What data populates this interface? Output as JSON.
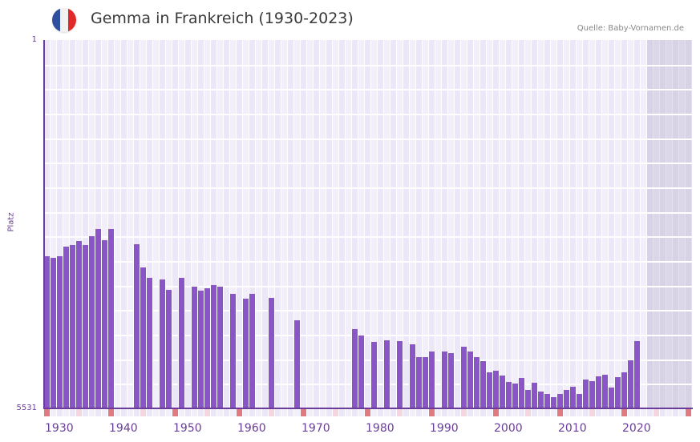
{
  "header": {
    "title": "Gemma in Frankreich (1930-2023)",
    "source": "Quelle: Baby-Vornamen.de",
    "flag_colors": [
      "#2f4f9f",
      "#f2f2f2",
      "#e02a2a"
    ]
  },
  "axes": {
    "y_top_label": "1",
    "y_bottom_label": "5531",
    "y_title": "Platz",
    "x_labels": [
      "1930",
      "1940",
      "1950",
      "1960",
      "1970",
      "1980",
      "1990",
      "2000",
      "2010",
      "2020"
    ]
  },
  "colors": {
    "bar": "#8a55c8",
    "axis": "#6a3d9a",
    "grid_a": "#f2eefb",
    "grid_b": "#ece6f8",
    "decade_marker": "#e07a82",
    "half_decade_marker": "#f5d6e0",
    "future_zone": "#ddd6e8"
  },
  "chart_data": {
    "type": "bar",
    "title": "Gemma in Frankreich (1930-2023)",
    "xlabel": "",
    "ylabel": "Platz",
    "y_axis_inverted": true,
    "ylim": [
      5531,
      1
    ],
    "x_range": [
      1930,
      2030
    ],
    "future_shaded_from": 2024,
    "grid": true,
    "legend": null,
    "categories": [
      1930,
      1931,
      1932,
      1933,
      1934,
      1935,
      1936,
      1937,
      1938,
      1939,
      1940,
      1944,
      1945,
      1946,
      1948,
      1949,
      1951,
      1953,
      1954,
      1955,
      1956,
      1957,
      1959,
      1961,
      1962,
      1965,
      1969,
      1978,
      1979,
      1981,
      1983,
      1985,
      1987,
      1988,
      1989,
      1990,
      1992,
      1993,
      1995,
      1996,
      1997,
      1998,
      1999,
      2000,
      2001,
      2002,
      2003,
      2004,
      2005,
      2006,
      2007,
      2008,
      2009,
      2010,
      2011,
      2012,
      2013,
      2014,
      2015,
      2016,
      2017,
      2018,
      2019,
      2020,
      2021,
      2022
    ],
    "values": [
      3247,
      3271,
      3247,
      3103,
      3079,
      3018,
      3079,
      2946,
      2838,
      3006,
      2838,
      3067,
      3415,
      3571,
      3595,
      3752,
      3571,
      3704,
      3764,
      3728,
      3680,
      3704,
      3812,
      3884,
      3812,
      3872,
      4209,
      4341,
      4437,
      4533,
      4509,
      4521,
      4569,
      4762,
      4762,
      4678,
      4678,
      4702,
      4605,
      4678,
      4762,
      4822,
      4990,
      4966,
      5038,
      5134,
      5158,
      5074,
      5254,
      5146,
      5278,
      5314,
      5362,
      5314,
      5254,
      5206,
      5314,
      5098,
      5122,
      5050,
      5026,
      5218,
      5062,
      4990,
      4810,
      4521
    ]
  }
}
